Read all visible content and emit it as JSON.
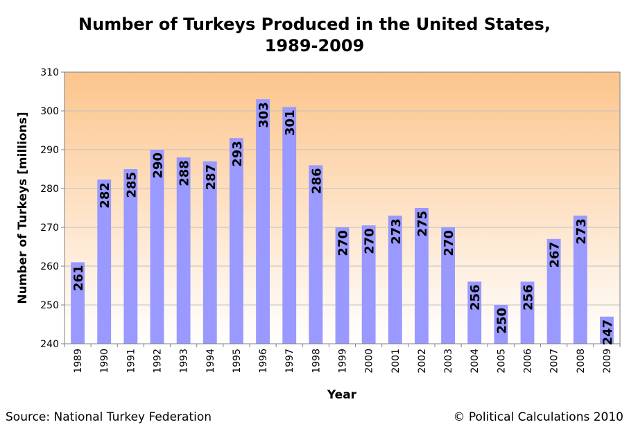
{
  "chart_data": {
    "type": "bar",
    "title": "Number of Turkeys Produced in the United States,",
    "subtitle": "1989-2009",
    "xlabel": "Year",
    "ylabel": "Number of Turkeys [millions]",
    "ylim": [
      240,
      310
    ],
    "yticks": [
      240,
      250,
      260,
      270,
      280,
      290,
      300,
      310
    ],
    "ytick_labels": [
      "240",
      "250",
      "260",
      "270",
      "280",
      "290",
      "300",
      "310"
    ],
    "grid": true,
    "categories": [
      "1989",
      "1990",
      "1991",
      "1992",
      "1993",
      "1994",
      "1995",
      "1996",
      "1997",
      "1998",
      "1999",
      "2000",
      "2001",
      "2002",
      "2003",
      "2004",
      "2005",
      "2006",
      "2007",
      "2008",
      "2009"
    ],
    "values": [
      261,
      282.3,
      285,
      290,
      288,
      287,
      293,
      303,
      301,
      286,
      270,
      270.5,
      273,
      275,
      270,
      256,
      250,
      256,
      267,
      273,
      247
    ],
    "data_labels": [
      "261",
      "282",
      "285",
      "290",
      "288",
      "287",
      "293",
      "303",
      "301",
      "286",
      "270",
      "270",
      "273",
      "275",
      "270",
      "256",
      "250",
      "256",
      "267",
      "273",
      "247"
    ],
    "colors": {
      "bar": "#9999FF",
      "plot_top": "#FCC58C",
      "plot_bottom": "#FFFFFF",
      "grid": "#C0C0C0",
      "axis": "#808080"
    }
  },
  "footer": {
    "source": "Source: National Turkey Federation",
    "copyright": "© Political Calculations 2010"
  }
}
